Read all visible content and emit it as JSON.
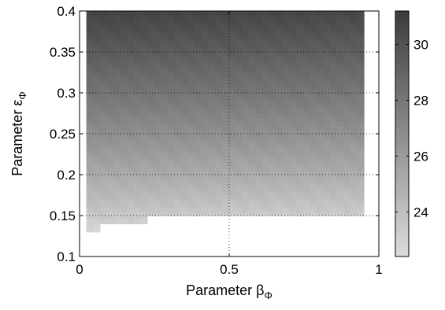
{
  "chart_data": {
    "type": "heatmap",
    "title": "",
    "xlabel": "Parameter β",
    "xlabel_subscript": "Φ",
    "ylabel": "Parameter ε",
    "ylabel_subscript": "Φ",
    "xlim": [
      0,
      1
    ],
    "ylim": [
      0.1,
      0.4
    ],
    "x_ticks": [
      0,
      0.5,
      1
    ],
    "x_tick_labels": [
      "0",
      "0.5",
      "1"
    ],
    "y_ticks": [
      0.1,
      0.15,
      0.2,
      0.25,
      0.3,
      0.35,
      0.4
    ],
    "y_tick_labels": [
      "0.1",
      "0.15",
      "0.2",
      "0.25",
      "0.3",
      "0.35",
      "0.4"
    ],
    "grid": "dotted",
    "colormap": "gray",
    "color_low": "#dcdcdc",
    "color_high": "#3c3c3c",
    "colorbar": {
      "range": [
        22.4,
        31.2
      ],
      "ticks": [
        24,
        26,
        28,
        30
      ],
      "tick_labels": [
        "24",
        "26",
        "28",
        "30"
      ]
    },
    "x_range_of_cells": [
      0.0,
      0.95
    ],
    "y_range_of_cells": [
      0.13,
      0.4
    ],
    "value_summary": {
      "at_low_epsilon": 22.6,
      "at_high_epsilon": 30.8
    },
    "masked_regions": [
      {
        "x": [
          0.0,
          0.02
        ],
        "y": [
          0.1,
          0.4
        ]
      },
      {
        "x": [
          0.02,
          0.07
        ],
        "y": [
          0.1,
          0.13
        ]
      },
      {
        "x": [
          0.07,
          0.23
        ],
        "y": [
          0.1,
          0.14
        ]
      },
      {
        "x": [
          0.23,
          0.95
        ],
        "y": [
          0.1,
          0.15
        ]
      },
      {
        "x": [
          0.95,
          1.0
        ],
        "y": [
          0.1,
          0.4
        ]
      }
    ]
  }
}
